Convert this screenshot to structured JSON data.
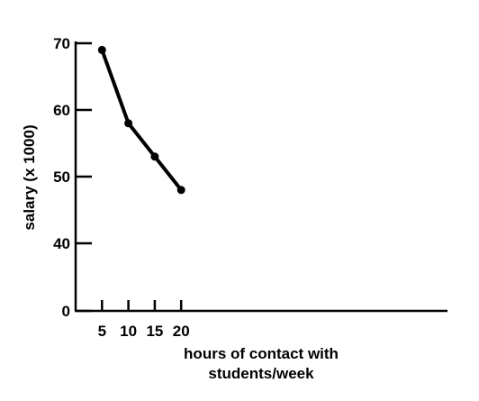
{
  "chart_data": {
    "type": "line",
    "x": [
      5,
      10,
      15,
      20
    ],
    "series": [
      {
        "values": [
          69,
          58,
          53,
          48
        ]
      }
    ],
    "xlabel_lines": [
      "hours of contact with",
      "students/week"
    ],
    "ylabel": "salary (x 1000)",
    "xlim": [
      0,
      25
    ],
    "ylim": [
      0,
      70
    ],
    "y_axis_breaks": [
      0,
      40
    ],
    "xticks": [
      5,
      10,
      15,
      20
    ],
    "yticks": [
      0,
      40,
      50,
      60,
      70
    ],
    "grid": false,
    "colors": {
      "line": "#000000"
    }
  }
}
